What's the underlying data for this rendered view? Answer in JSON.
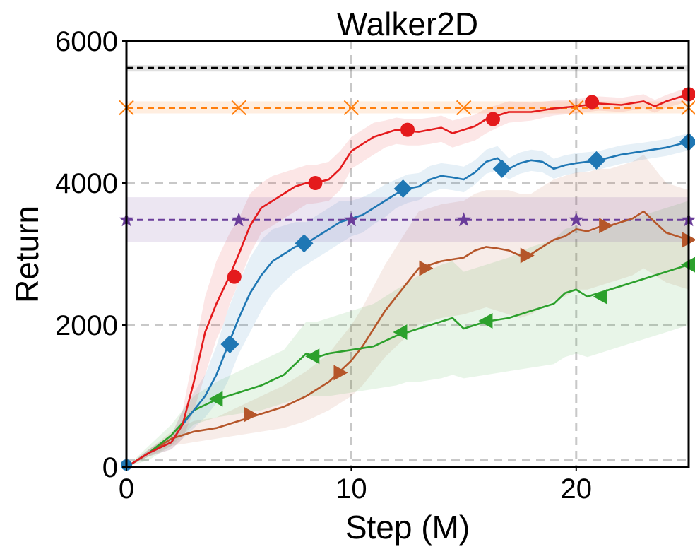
{
  "chart_data": {
    "type": "line",
    "title": "Walker2D",
    "xlabel": "Step (M)",
    "ylabel": "Return",
    "xlim": [
      0,
      25
    ],
    "ylim": [
      0,
      6000
    ],
    "xticks": [
      0,
      10,
      20
    ],
    "yticks": [
      0,
      2000,
      4000,
      6000
    ],
    "xtick_labels": [
      "0",
      "10",
      "20"
    ],
    "ytick_labels": [
      "0",
      "2000",
      "4000",
      "6000"
    ],
    "grid": true,
    "series": [
      {
        "name": "red-circle",
        "color": "#e41a1c",
        "marker": "circle",
        "x": [
          0,
          1,
          2,
          2.5,
          3,
          3.5,
          4,
          4.3,
          4.6,
          5,
          5.5,
          6,
          6.5,
          7,
          7.5,
          8,
          8.5,
          9,
          9.5,
          10,
          10.5,
          11,
          11.5,
          12,
          12.5,
          13,
          13.5,
          14,
          14.5,
          15,
          15.5,
          16,
          16.5,
          17,
          18,
          19,
          20,
          20.5,
          21,
          22,
          23,
          23.5,
          24,
          25
        ],
        "y": [
          0,
          200,
          350,
          600,
          1200,
          1900,
          2300,
          2500,
          2700,
          3000,
          3400,
          3650,
          3750,
          3850,
          3950,
          4000,
          4010,
          4050,
          4200,
          4450,
          4550,
          4650,
          4700,
          4750,
          4730,
          4720,
          4750,
          4780,
          4700,
          4750,
          4800,
          4900,
          4950,
          5000,
          5000,
          5050,
          5080,
          5100,
          5120,
          5100,
          5150,
          5080,
          5150,
          5250
        ],
        "marker_x": [
          4.8,
          8.4,
          12.5,
          16.3,
          20.7,
          25
        ],
        "marker_y": [
          2680,
          4000,
          4750,
          4900,
          5140,
          5250
        ],
        "band_lower": [
          0,
          150,
          250,
          400,
          800,
          1300,
          1800,
          2000,
          2300,
          2600,
          3000,
          3300,
          3400,
          3500,
          3600,
          3700,
          3720,
          3750,
          3900,
          4200,
          4300,
          4400,
          4500,
          4550,
          4530,
          4530,
          4550,
          4580,
          4500,
          4550,
          4600,
          4700,
          4780,
          4850,
          4880,
          4950,
          4980,
          5000,
          5020,
          5000,
          5050,
          4990,
          5060,
          5150
        ],
        "band_upper": [
          0,
          250,
          450,
          800,
          1600,
          2400,
          2900,
          3100,
          3300,
          3500,
          3850,
          4000,
          4100,
          4150,
          4200,
          4250,
          4260,
          4300,
          4450,
          4650,
          4750,
          4850,
          4880,
          4920,
          4900,
          4900,
          4920,
          4950,
          4880,
          4920,
          4960,
          5050,
          5100,
          5150,
          5130,
          5160,
          5180,
          5200,
          5220,
          5200,
          5250,
          5170,
          5240,
          5350
        ]
      },
      {
        "name": "blue-diamond",
        "color": "#1f77b4",
        "marker": "diamond",
        "x": [
          0,
          1,
          2,
          2.5,
          3,
          3.5,
          4,
          4.5,
          5,
          5.5,
          6,
          6.5,
          7,
          7.5,
          8,
          8.5,
          9,
          9.5,
          10,
          10.5,
          11,
          11.5,
          12,
          12.5,
          13,
          13.5,
          14,
          14.5,
          15,
          15.5,
          16,
          16.5,
          17,
          17.5,
          18,
          18.5,
          19,
          19.5,
          20,
          21,
          22,
          23,
          24,
          25
        ],
        "y": [
          0,
          200,
          350,
          600,
          800,
          1000,
          1300,
          1700,
          2100,
          2450,
          2700,
          2900,
          3000,
          3100,
          3150,
          3250,
          3350,
          3450,
          3500,
          3550,
          3650,
          3750,
          3850,
          3920,
          3950,
          4050,
          4100,
          4080,
          4050,
          4150,
          4300,
          4350,
          4200,
          4280,
          4320,
          4300,
          4200,
          4250,
          4280,
          4320,
          4400,
          4450,
          4500,
          4580
        ],
        "marker_x": [
          4.6,
          7.9,
          12.3,
          16.7,
          20.9,
          25
        ],
        "marker_y": [
          1730,
          3150,
          3920,
          4200,
          4320,
          4580
        ],
        "band_lower": [
          0,
          150,
          250,
          400,
          550,
          700,
          900,
          1200,
          1600,
          1900,
          2200,
          2450,
          2600,
          2750,
          2850,
          2950,
          3050,
          3150,
          3250,
          3300,
          3420,
          3520,
          3650,
          3720,
          3760,
          3860,
          3920,
          3900,
          3870,
          3980,
          4130,
          4180,
          4050,
          4130,
          4170,
          4150,
          4060,
          4110,
          4140,
          4190,
          4270,
          4330,
          4380,
          4460
        ],
        "band_upper": [
          0,
          250,
          450,
          800,
          1050,
          1300,
          1700,
          2200,
          2600,
          2950,
          3200,
          3350,
          3400,
          3450,
          3450,
          3550,
          3650,
          3750,
          3750,
          3800,
          3880,
          3980,
          4050,
          4120,
          4140,
          4240,
          4280,
          4260,
          4230,
          4320,
          4470,
          4520,
          4350,
          4430,
          4470,
          4450,
          4340,
          4390,
          4420,
          4450,
          4530,
          4570,
          4620,
          4700
        ]
      },
      {
        "name": "green-triangle-left",
        "color": "#2ca02c",
        "marker": "triangle-left",
        "x": [
          0,
          1,
          2,
          3,
          4,
          5,
          6,
          7,
          7.5,
          8,
          8.5,
          9,
          10,
          11,
          12,
          12.5,
          13,
          14,
          14.5,
          15,
          16,
          17,
          18,
          19,
          19.5,
          20,
          20.5,
          21,
          22,
          23,
          24,
          25
        ],
        "y": [
          0,
          200,
          450,
          800,
          950,
          1050,
          1150,
          1300,
          1450,
          1600,
          1550,
          1600,
          1650,
          1700,
          1850,
          1900,
          1950,
          2050,
          2100,
          1950,
          2050,
          2100,
          2200,
          2300,
          2450,
          2500,
          2400,
          2450,
          2550,
          2650,
          2750,
          2850
        ],
        "marker_x": [
          4.0,
          8.3,
          12.2,
          16.0,
          21.1,
          25
        ],
        "marker_y": [
          960,
          1560,
          1900,
          2060,
          2400,
          2850
        ],
        "band_lower": [
          0,
          100,
          300,
          600,
          700,
          750,
          800,
          900,
          950,
          1000,
          1000,
          1000,
          1050,
          1100,
          1150,
          1200,
          1200,
          1250,
          1300,
          1250,
          1300,
          1350,
          1400,
          1450,
          1550,
          1600,
          1550,
          1600,
          1700,
          1800,
          1900,
          2000
        ],
        "band_upper": [
          0,
          300,
          600,
          1000,
          1200,
          1350,
          1500,
          1650,
          1850,
          2050,
          2050,
          2100,
          2200,
          2300,
          2500,
          2600,
          2700,
          2850,
          2900,
          2750,
          2850,
          2950,
          3100,
          3200,
          3350,
          3400,
          3300,
          3350,
          3450,
          3550,
          3650,
          3750
        ]
      },
      {
        "name": "brown-triangle-right",
        "color": "#b5562a",
        "marker": "triangle-right",
        "x": [
          0,
          1,
          2,
          3,
          4,
          5,
          6,
          7,
          8,
          9,
          9.5,
          10,
          10.5,
          11,
          11.5,
          12,
          12.5,
          13,
          13.5,
          14,
          15,
          15.5,
          16,
          16.5,
          17,
          17.5,
          18,
          18.5,
          19,
          19.5,
          20,
          20.5,
          21,
          21.5,
          22,
          22.5,
          23,
          23.5,
          24,
          24.5,
          25
        ],
        "y": [
          0,
          200,
          400,
          500,
          550,
          650,
          750,
          850,
          1000,
          1200,
          1350,
          1500,
          1700,
          1950,
          2200,
          2400,
          2600,
          2800,
          2850,
          2900,
          2950,
          3050,
          3100,
          3080,
          3050,
          2980,
          3000,
          3100,
          3200,
          3250,
          3350,
          3320,
          3380,
          3400,
          3450,
          3500,
          3600,
          3450,
          3300,
          3250,
          3200
        ],
        "marker_x": [
          5.5,
          9.5,
          13.3,
          17.8,
          21.3,
          25
        ],
        "marker_y": [
          740,
          1330,
          2800,
          2980,
          3400,
          3200
        ],
        "band_lower": [
          0,
          150,
          300,
          350,
          400,
          450,
          500,
          550,
          650,
          800,
          900,
          1000,
          1150,
          1350,
          1550,
          1700,
          1850,
          2000,
          2050,
          2100,
          2150,
          2200,
          2250,
          2200,
          2150,
          2100,
          2150,
          2250,
          2350,
          2400,
          2500,
          2500,
          2550,
          2600,
          2650,
          2700,
          2800,
          2700,
          2600,
          2550,
          2500
        ],
        "band_upper": [
          0,
          250,
          500,
          650,
          700,
          850,
          1000,
          1150,
          1350,
          1600,
          1800,
          2000,
          2250,
          2550,
          2850,
          3100,
          3350,
          3600,
          3650,
          3700,
          3750,
          3850,
          3900,
          3900,
          3900,
          3850,
          3850,
          3950,
          4050,
          4100,
          4150,
          4150,
          4200,
          4200,
          4250,
          4300,
          4400,
          4200,
          4000,
          3950,
          3900
        ]
      }
    ],
    "reference_lines": [
      {
        "name": "black-dashed",
        "value": 5620,
        "color": "#000000",
        "marker": "none",
        "band": [
          5570,
          5660
        ]
      },
      {
        "name": "orange-x",
        "value": 5060,
        "color": "#ff7f0e",
        "marker": "x",
        "band": [
          4980,
          5150
        ]
      },
      {
        "name": "purple-star",
        "value": 3480,
        "color": "#6a3d9a",
        "marker": "star",
        "band": [
          3170,
          3800
        ]
      }
    ],
    "reference_marker_x": [
      0,
      5,
      10,
      15,
      20,
      25
    ]
  }
}
